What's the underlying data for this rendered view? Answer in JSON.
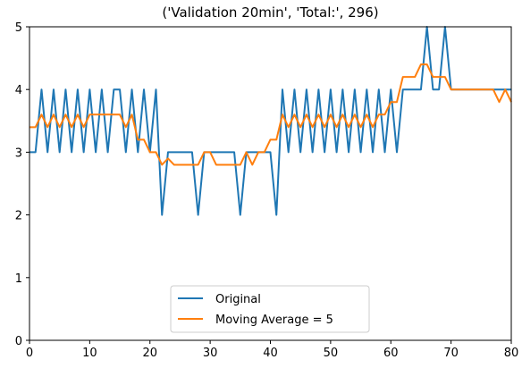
{
  "chart_data": {
    "type": "line",
    "title": "('Validation 20min', 'Total:', 296)",
    "xlabel": "",
    "ylabel": "",
    "xlim": [
      0,
      80
    ],
    "ylim": [
      0,
      5
    ],
    "xticks": [
      0,
      10,
      20,
      30,
      40,
      50,
      60,
      70,
      80
    ],
    "yticks": [
      0,
      1,
      2,
      3,
      4,
      5
    ],
    "grid": false,
    "legend_position": "lower-center",
    "series": [
      {
        "name": "Original",
        "color": "#1f77b4",
        "x": [
          0,
          1,
          2,
          3,
          4,
          5,
          6,
          7,
          8,
          9,
          10,
          11,
          12,
          13,
          14,
          15,
          16,
          17,
          18,
          19,
          20,
          21,
          22,
          23,
          24,
          25,
          26,
          27,
          28,
          29,
          30,
          31,
          32,
          33,
          34,
          35,
          36,
          37,
          38,
          39,
          40,
          41,
          42,
          43,
          44,
          45,
          46,
          47,
          48,
          49,
          50,
          51,
          52,
          53,
          54,
          55,
          56,
          57,
          58,
          59,
          60,
          61,
          62,
          63,
          64,
          65,
          66,
          67,
          68,
          69,
          70,
          71,
          72,
          73,
          74,
          75,
          76,
          77,
          78,
          79,
          80
        ],
        "values": [
          3,
          3,
          4,
          3,
          4,
          3,
          4,
          3,
          4,
          3,
          4,
          3,
          4,
          3,
          4,
          4,
          3,
          4,
          3,
          4,
          3,
          4,
          2,
          3,
          3,
          3,
          3,
          3,
          2,
          3,
          3,
          3,
          3,
          3,
          3,
          2,
          3,
          3,
          3,
          3,
          3,
          2,
          4,
          3,
          4,
          3,
          4,
          3,
          4,
          3,
          4,
          3,
          4,
          3,
          4,
          3,
          4,
          3,
          4,
          3,
          4,
          3,
          4,
          4,
          4,
          4,
          5,
          4,
          4,
          5,
          4,
          4,
          4,
          4,
          4,
          4,
          4,
          4,
          4,
          4,
          4
        ]
      },
      {
        "name": "Moving Average = 5",
        "color": "#ff7f0e",
        "x": [
          0,
          1,
          2,
          3,
          4,
          5,
          6,
          7,
          8,
          9,
          10,
          11,
          12,
          13,
          14,
          15,
          16,
          17,
          18,
          19,
          20,
          21,
          22,
          23,
          24,
          25,
          26,
          27,
          28,
          29,
          30,
          31,
          32,
          33,
          34,
          35,
          36,
          37,
          38,
          39,
          40,
          41,
          42,
          43,
          44,
          45,
          46,
          47,
          48,
          49,
          50,
          51,
          52,
          53,
          54,
          55,
          56,
          57,
          58,
          59,
          60,
          61,
          62,
          63,
          64,
          65,
          66,
          67,
          68,
          69,
          70,
          71,
          72,
          73,
          74,
          75,
          76,
          77,
          78,
          79,
          80
        ],
        "values": [
          3.4,
          3.4,
          3.6,
          3.4,
          3.6,
          3.4,
          3.6,
          3.4,
          3.6,
          3.4,
          3.6,
          3.6,
          3.6,
          3.6,
          3.6,
          3.6,
          3.4,
          3.6,
          3.2,
          3.2,
          3.0,
          3.0,
          2.8,
          2.9,
          2.8,
          2.8,
          2.8,
          2.8,
          2.8,
          3.0,
          3.0,
          2.8,
          2.8,
          2.8,
          2.8,
          2.8,
          3.0,
          2.8,
          3.0,
          3.0,
          3.2,
          3.2,
          3.6,
          3.4,
          3.6,
          3.4,
          3.6,
          3.4,
          3.6,
          3.4,
          3.6,
          3.4,
          3.6,
          3.4,
          3.6,
          3.4,
          3.6,
          3.4,
          3.6,
          3.6,
          3.8,
          3.8,
          4.2,
          4.2,
          4.2,
          4.4,
          4.4,
          4.2,
          4.2,
          4.2,
          4.0,
          4.0,
          4.0,
          4.0,
          4.0,
          4.0,
          4.0,
          4.0,
          3.8,
          4.0,
          3.8
        ]
      }
    ]
  }
}
